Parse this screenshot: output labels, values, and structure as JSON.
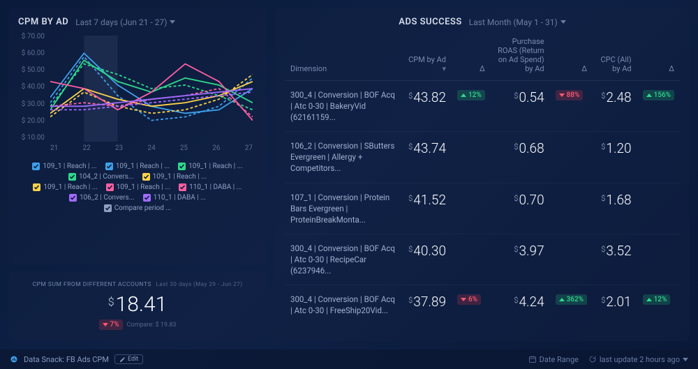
{
  "chart": {
    "title": "CPM BY AD",
    "date_range_label": "Last 7 days (Jun 21 - 27)",
    "y_ticks": [
      "$ 70.00",
      "$ 60.00",
      "$ 50.00",
      "$ 40.00",
      "$ 30.00",
      "$ 20.00",
      "$ 10.00"
    ],
    "x_ticks": [
      "21",
      "22",
      "23",
      "24",
      "25",
      "26",
      "27"
    ],
    "ylim": [
      10,
      70
    ],
    "highlight_band": {
      "start_index": 1,
      "end_index": 2
    },
    "grid_color": "#2a3d64",
    "series": [
      {
        "label": "109_1 | Reach | ...",
        "color": "#3fa0ea",
        "dashed": false,
        "values": [
          35,
          60,
          42,
          30,
          26,
          28,
          40
        ]
      },
      {
        "label": "109_1 | Reach | ...",
        "color": "#3fa0ea",
        "dashed": true,
        "values": [
          32,
          58,
          36,
          22,
          24,
          30,
          46
        ]
      },
      {
        "label": "109_1 | Reach | ...",
        "color": "#2fd98a",
        "dashed": false,
        "values": [
          28,
          56,
          44,
          38,
          46,
          42,
          32
        ]
      },
      {
        "label": "104_2 | Convers...",
        "color": "#2fd98a",
        "dashed": true,
        "values": [
          30,
          54,
          48,
          40,
          42,
          36,
          28
        ]
      },
      {
        "label": "109_1 | Reach | ...",
        "color": "#ffd24a",
        "dashed": false,
        "values": [
          26,
          40,
          34,
          30,
          32,
          36,
          44
        ]
      },
      {
        "label": "109_1 | Reach | ...",
        "color": "#ffd24a",
        "dashed": true,
        "values": [
          24,
          38,
          30,
          26,
          28,
          34,
          48
        ]
      },
      {
        "label": "109_1 | Reach | ...",
        "color": "#ff5fa2",
        "dashed": false,
        "values": [
          44,
          40,
          28,
          38,
          54,
          44,
          22
        ]
      },
      {
        "label": "110_1 | DABA | ...",
        "color": "#ff5fa2",
        "dashed": true,
        "values": [
          30,
          32,
          30,
          34,
          36,
          40,
          24
        ]
      },
      {
        "label": "106_2 | Convers...",
        "color": "#a26bff",
        "dashed": false,
        "values": [
          30,
          30,
          32,
          34,
          36,
          38,
          40
        ]
      },
      {
        "label": "110_1 | DABA | ...",
        "color": "#a26bff",
        "dashed": true,
        "values": [
          28,
          28,
          30,
          32,
          34,
          36,
          38
        ]
      }
    ],
    "compare_label": "Compare period ...",
    "compare_checked": true
  },
  "summary": {
    "title": "CPM SUM FROM DIFFERENT ACCOUNTS",
    "subtitle": "Last 30 days (May 29 - Jun 27)",
    "value": "18.41",
    "delta": {
      "dir": "down",
      "text": "7%"
    },
    "compare_text": "Compare: $ 19.83"
  },
  "table": {
    "title": "ADS SUCCESS",
    "date_range_label": "Last Month (May 1 - 31)",
    "columns": {
      "dimension": "Dimension",
      "cpm": "CPM by Ad",
      "roas": "Purchase ROAS (Return on Ad Spend) by Ad",
      "cpc": "CPC (All) by Ad",
      "delta": "Δ"
    },
    "rows": [
      {
        "dimension": "300_4 | Conversion | BOF Acq | Atc 0-30 | BakeryVid (62161159...",
        "cpm": "43.82",
        "cpm_delta": {
          "dir": "up",
          "text": "12%"
        },
        "roas": "0.54",
        "roas_delta": {
          "dir": "down",
          "text": "88%"
        },
        "cpc": "2.48",
        "cpc_delta": {
          "dir": "up",
          "text": "156%"
        }
      },
      {
        "dimension": "106_2 | Conversion | SButters Evergreen | Allergy + Competitors...",
        "cpm": "43.74",
        "cpm_delta": null,
        "roas": "0.68",
        "roas_delta": null,
        "cpc": "1.20",
        "cpc_delta": null
      },
      {
        "dimension": "107_1 | Conversion | Protein Bars Evergreen | ProteinBreakMonta...",
        "cpm": "41.52",
        "cpm_delta": null,
        "roas": "0.70",
        "roas_delta": null,
        "cpc": "1.68",
        "cpc_delta": null
      },
      {
        "dimension": "300_4 | Conversion | BOF Acq | Atc 0-30 | RecipeCar (6237946...",
        "cpm": "40.30",
        "cpm_delta": null,
        "roas": "3.97",
        "roas_delta": null,
        "cpc": "3.52",
        "cpc_delta": null
      },
      {
        "dimension": "300_4 | Conversion | BOF Acq | Atc 0-30 | FreeShip20Vid...",
        "cpm": "37.89",
        "cpm_delta": {
          "dir": "down",
          "text": "6%"
        },
        "roas": "4.24",
        "roas_delta": {
          "dir": "up",
          "text": "362%"
        },
        "cpc": "2.01",
        "cpc_delta": {
          "dir": "up",
          "text": "12%"
        }
      }
    ]
  },
  "footer": {
    "title": "Data Snack: FB Ads CPM",
    "edit_label": "Edit",
    "date_range_label": "Date Range",
    "last_update_label": "last update 2 hours ago"
  }
}
